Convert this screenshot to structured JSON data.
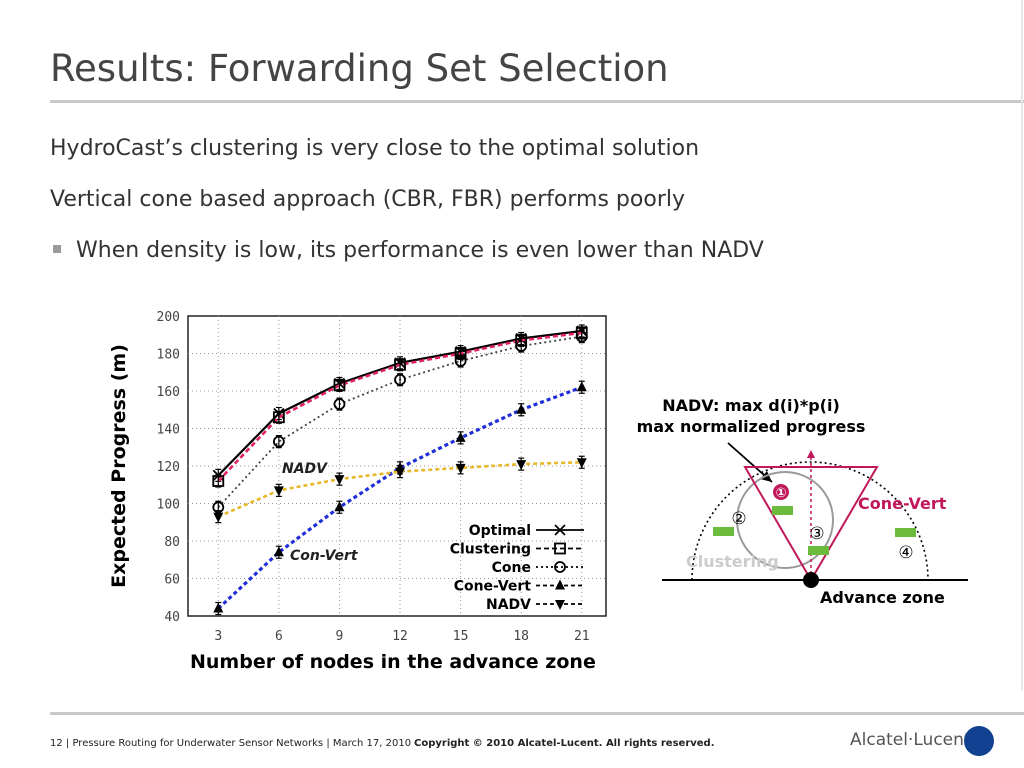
{
  "slide": {
    "title": "Results: Forwarding Set Selection",
    "lines": [
      "HydroCast’s clustering is very close to the optimal solution",
      "Vertical cone based approach (CBR, FBR) performs poorly"
    ],
    "bullet": "When density is low, its performance is even lower than NADV"
  },
  "chart_data": {
    "type": "line",
    "xlabel": "Number of nodes in the advance zone",
    "ylabel": "Expected Progress (m)",
    "x": [
      3,
      6,
      9,
      12,
      15,
      18,
      21
    ],
    "xlim": [
      1.5,
      22.2
    ],
    "ylim": [
      40,
      200
    ],
    "yticks": [
      40,
      60,
      80,
      100,
      120,
      140,
      160,
      180,
      200
    ],
    "grid": true,
    "legend": "bottom-right",
    "series": [
      {
        "name": "Optimal",
        "values": [
          115,
          148,
          164,
          175,
          181,
          188,
          192
        ],
        "color": "#000000"
      },
      {
        "name": "Clustering",
        "values": [
          112,
          146,
          163,
          174,
          180,
          187,
          191
        ],
        "color": "#e0245e"
      },
      {
        "name": "Cone",
        "values": [
          98,
          133,
          153,
          166,
          176,
          184,
          189
        ],
        "color": "#444444"
      },
      {
        "name": "Cone-Vert",
        "values": [
          44,
          74,
          98,
          119,
          135,
          150,
          162
        ],
        "color": "#1f2fd8"
      },
      {
        "name": "NADV",
        "values": [
          93,
          107,
          113,
          117,
          119,
          121,
          122
        ],
        "color": "#e8b82a"
      }
    ],
    "annotations": [
      "NADV",
      "Con-Vert"
    ]
  },
  "diagram": {
    "title_line1": "NADV: max d(i)*p(i)",
    "title_line2": "max normalized progress",
    "cone_label": "Cone-Vert",
    "cluster_label": "Clustering",
    "zone_label": "Advance zone",
    "markers": [
      "①",
      "②",
      "③",
      "④"
    ],
    "colors": {
      "cone": "#c0185a",
      "cluster": "#9a9a9a",
      "node": "#6cbb3c"
    }
  },
  "footer": {
    "left": "12 | Pressure Routing for  Underwater Sensor Networks | March 17,  2010",
    "copyright": "Copyright © 2010 Alcatel-Lucent. All rights reserved.",
    "logo": "Alcatel·Lucent"
  }
}
